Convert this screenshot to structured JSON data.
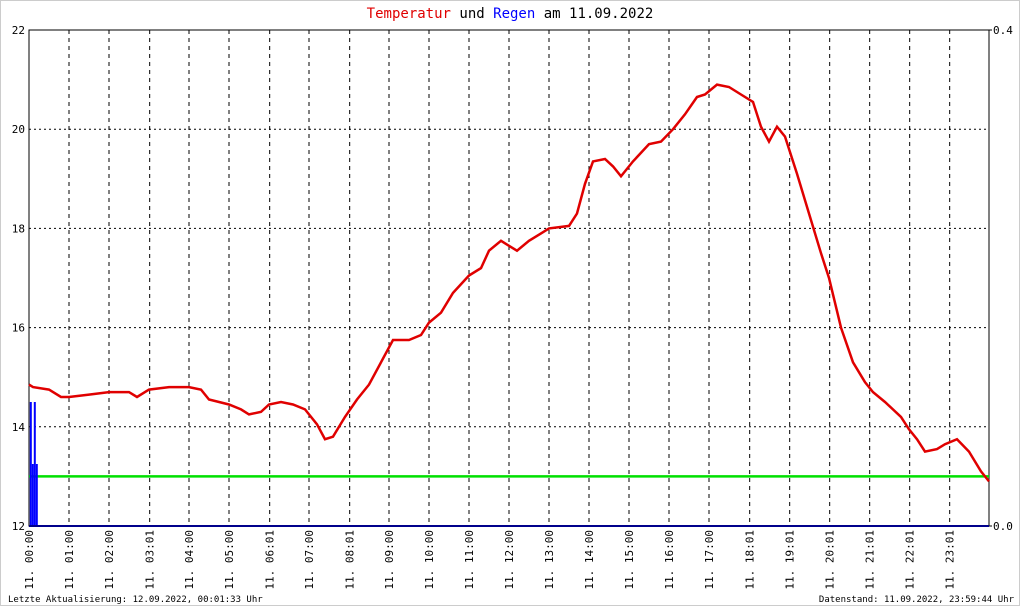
{
  "chart_data": {
    "type": "line",
    "title": [
      "und",
      "am 11.09.2022"
    ],
    "series": [
      {
        "name": "Temperatur",
        "color": "#e00000",
        "type": "line",
        "x": [
          0,
          0.1,
          0.5,
          0.8,
          1.0,
          1.5,
          2.0,
          2.5,
          2.7,
          3.0,
          3.5,
          4.0,
          4.3,
          4.5,
          5.0,
          5.3,
          5.5,
          5.8,
          6.0,
          6.3,
          6.6,
          6.9,
          7.2,
          7.4,
          7.6,
          7.9,
          8.2,
          8.5,
          8.8,
          9.1,
          9.5,
          9.8,
          10.0,
          10.3,
          10.6,
          11.0,
          11.3,
          11.5,
          11.8,
          12.0,
          12.2,
          12.5,
          12.8,
          13.0,
          13.5,
          13.7,
          13.9,
          14.1,
          14.4,
          14.6,
          14.8,
          15.1,
          15.5,
          15.8,
          16.1,
          16.4,
          16.7,
          16.9,
          17.2,
          17.5,
          17.8,
          18.1,
          18.3,
          18.5,
          18.7,
          18.9,
          19.2,
          19.5,
          19.8,
          20.0,
          20.3,
          20.6,
          20.9,
          21.1,
          21.4,
          21.8,
          22.0,
          22.2,
          22.4,
          22.7,
          22.9,
          23.2,
          23.5,
          23.8,
          24.0
        ],
        "values": [
          14.85,
          14.8,
          14.75,
          14.6,
          14.6,
          14.65,
          14.7,
          14.7,
          14.6,
          14.75,
          14.8,
          14.8,
          14.75,
          14.55,
          14.45,
          14.35,
          14.25,
          14.3,
          14.45,
          14.5,
          14.45,
          14.35,
          14.05,
          13.75,
          13.8,
          14.2,
          14.55,
          14.85,
          15.3,
          15.75,
          15.75,
          15.85,
          16.1,
          16.3,
          16.7,
          17.05,
          17.2,
          17.55,
          17.75,
          17.65,
          17.55,
          17.75,
          17.9,
          18.0,
          18.05,
          18.3,
          18.9,
          19.35,
          19.4,
          19.25,
          19.05,
          19.35,
          19.7,
          19.75,
          20.0,
          20.3,
          20.65,
          20.7,
          20.9,
          20.85,
          20.7,
          20.55,
          20.05,
          19.75,
          20.05,
          19.85,
          19.1,
          18.3,
          17.5,
          17.0,
          16.0,
          15.3,
          14.9,
          14.7,
          14.5,
          14.2,
          13.95,
          13.75,
          13.5,
          13.55,
          13.65,
          13.75,
          13.5,
          13.1,
          12.9
        ]
      },
      {
        "name": "Regen",
        "color": "#0000ff",
        "type": "bar",
        "axis": "y2",
        "x": [
          0.02,
          0.07,
          0.12,
          0.17
        ],
        "values": [
          0.1,
          0.05,
          0.1,
          0.05
        ]
      }
    ],
    "hline": {
      "value": 13,
      "color": "#00e000"
    },
    "xlim": [
      0,
      24
    ],
    "xticks": [
      {
        "value": 0,
        "label": "11. 00:00"
      },
      {
        "value": 1,
        "label": "11. 01:00"
      },
      {
        "value": 2,
        "label": "11. 02:00"
      },
      {
        "value": 3.017,
        "label": "11. 03:01"
      },
      {
        "value": 4,
        "label": "11. 04:00"
      },
      {
        "value": 5,
        "label": "11. 05:00"
      },
      {
        "value": 6.017,
        "label": "11. 06:01"
      },
      {
        "value": 7,
        "label": "11. 07:00"
      },
      {
        "value": 8.017,
        "label": "11. 08:01"
      },
      {
        "value": 9,
        "label": "11. 09:00"
      },
      {
        "value": 10,
        "label": "11. 10:00"
      },
      {
        "value": 11,
        "label": "11. 11:00"
      },
      {
        "value": 12,
        "label": "11. 12:00"
      },
      {
        "value": 13,
        "label": "11. 13:00"
      },
      {
        "value": 14,
        "label": "11. 14:00"
      },
      {
        "value": 15,
        "label": "11. 15:00"
      },
      {
        "value": 16,
        "label": "11. 16:00"
      },
      {
        "value": 17,
        "label": "11. 17:00"
      },
      {
        "value": 18.017,
        "label": "11. 18:01"
      },
      {
        "value": 19.017,
        "label": "11. 19:01"
      },
      {
        "value": 20.017,
        "label": "11. 20:01"
      },
      {
        "value": 21.017,
        "label": "11. 21:01"
      },
      {
        "value": 22.017,
        "label": "11. 22:01"
      },
      {
        "value": 23.017,
        "label": "11. 23:01"
      }
    ],
    "ylim": [
      12,
      22
    ],
    "yticks": [
      12,
      14,
      16,
      18,
      20,
      22
    ],
    "y2lim": [
      0,
      0.4
    ],
    "y2ticks": [
      {
        "value": 0,
        "label": "0.0"
      },
      {
        "value": 0.4,
        "label": "0.4"
      }
    ],
    "grid": true,
    "footer": {
      "left": "Letzte Aktualisierung: 12.09.2022, 00:01:33 Uhr",
      "right": "Datenstand: 11.09.2022, 23:59:44 Uhr"
    }
  }
}
